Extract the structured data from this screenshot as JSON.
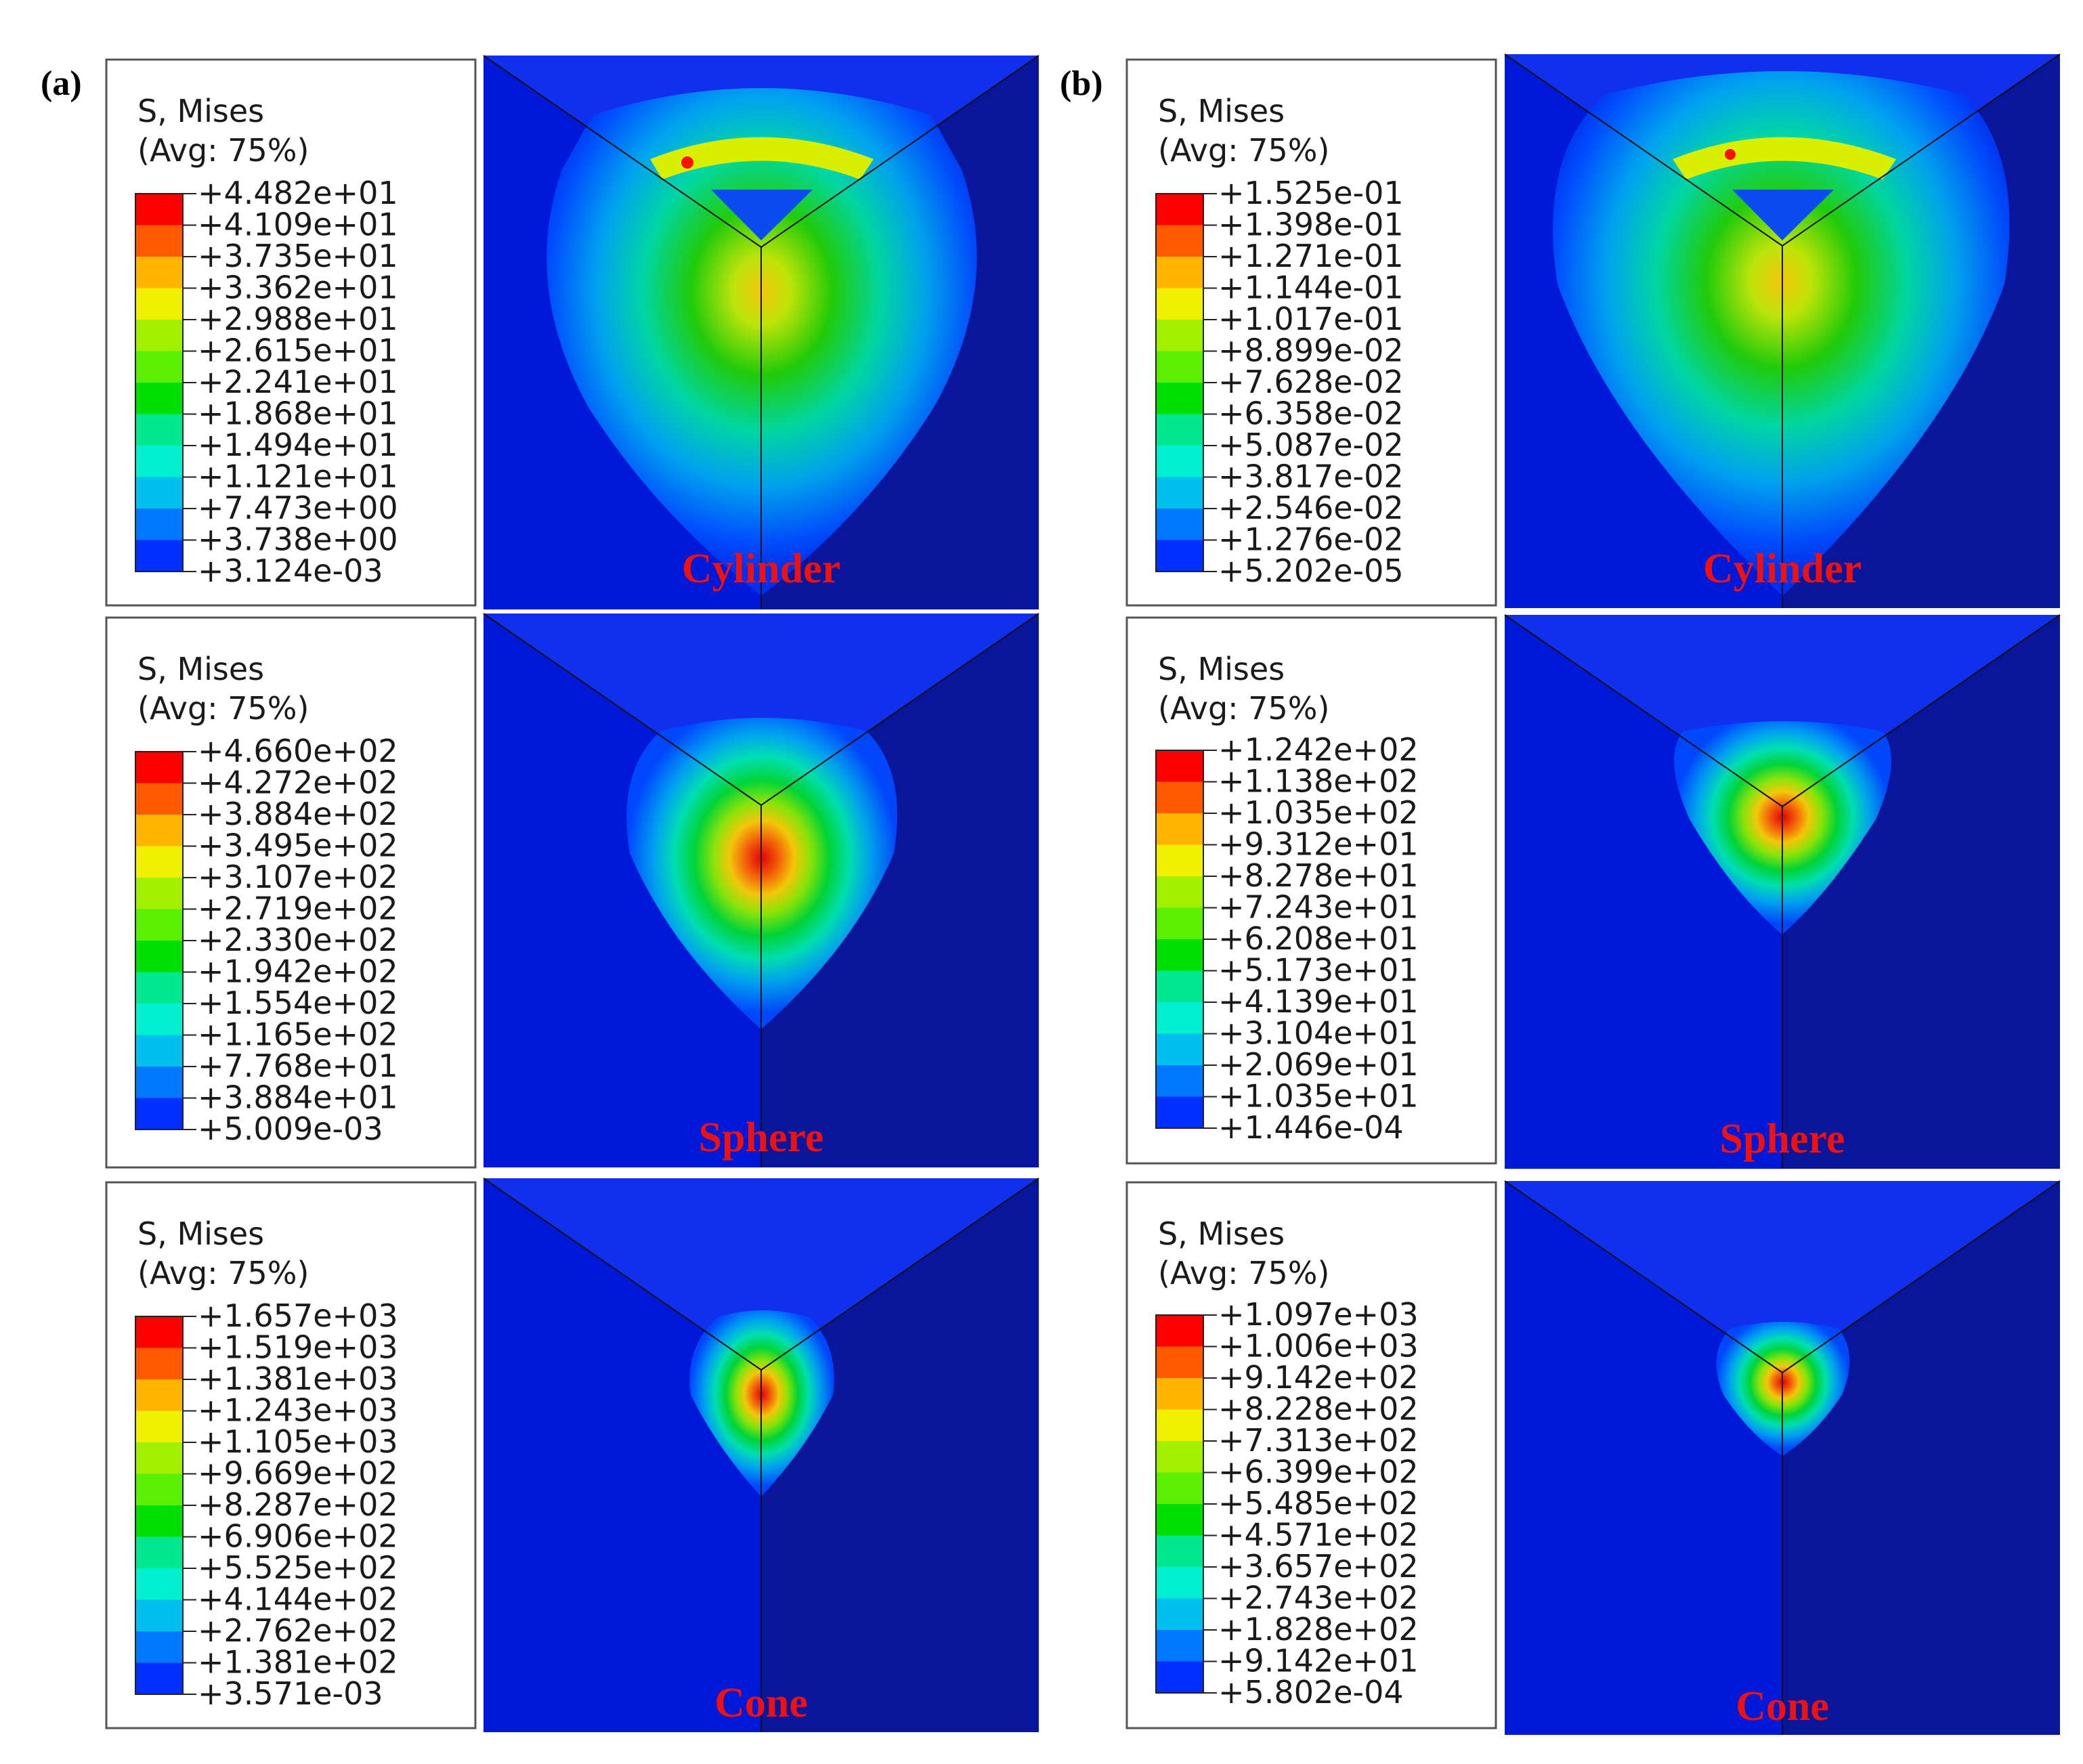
{
  "figure": {
    "panels": [
      {
        "letter": "(a)",
        "rows": [
          {
            "shape": "Cylinder",
            "legend_title": "S, Mises",
            "legend_subtitle": "(Avg: 75%)",
            "values": [
              "+4.482e+01",
              "+4.109e+01",
              "+3.735e+01",
              "+3.362e+01",
              "+2.988e+01",
              "+2.615e+01",
              "+2.241e+01",
              "+1.868e+01",
              "+1.494e+01",
              "+1.121e+01",
              "+7.473e+00",
              "+3.738e+00",
              "+3.124e-03"
            ]
          },
          {
            "shape": "Sphere",
            "legend_title": "S, Mises",
            "legend_subtitle": "(Avg: 75%)",
            "values": [
              "+4.660e+02",
              "+4.272e+02",
              "+3.884e+02",
              "+3.495e+02",
              "+3.107e+02",
              "+2.719e+02",
              "+2.330e+02",
              "+1.942e+02",
              "+1.554e+02",
              "+1.165e+02",
              "+7.768e+01",
              "+3.884e+01",
              "+5.009e-03"
            ]
          },
          {
            "shape": "Cone",
            "legend_title": "S, Mises",
            "legend_subtitle": "(Avg: 75%)",
            "values": [
              "+1.657e+03",
              "+1.519e+03",
              "+1.381e+03",
              "+1.243e+03",
              "+1.105e+03",
              "+9.669e+02",
              "+8.287e+02",
              "+6.906e+02",
              "+5.525e+02",
              "+4.144e+02",
              "+2.762e+02",
              "+1.381e+02",
              "+3.571e-03"
            ]
          }
        ]
      },
      {
        "letter": "(b)",
        "rows": [
          {
            "shape": "Cylinder",
            "legend_title": "S, Mises",
            "legend_subtitle": "(Avg: 75%)",
            "values": [
              "+1.525e-01",
              "+1.398e-01",
              "+1.271e-01",
              "+1.144e-01",
              "+1.017e-01",
              "+8.899e-02",
              "+7.628e-02",
              "+6.358e-02",
              "+5.087e-02",
              "+3.817e-02",
              "+2.546e-02",
              "+1.276e-02",
              "+5.202e-05"
            ]
          },
          {
            "shape": "Sphere",
            "legend_title": "S, Mises",
            "legend_subtitle": "(Avg: 75%)",
            "values": [
              "+1.242e+02",
              "+1.138e+02",
              "+1.035e+02",
              "+9.312e+01",
              "+8.278e+01",
              "+7.243e+01",
              "+6.208e+01",
              "+5.173e+01",
              "+4.139e+01",
              "+3.104e+01",
              "+2.069e+01",
              "+1.035e+01",
              "+1.446e-04"
            ]
          },
          {
            "shape": "Cone",
            "legend_title": "S, Mises",
            "legend_subtitle": "(Avg: 75%)",
            "values": [
              "+1.097e+03",
              "+1.006e+03",
              "+9.142e+02",
              "+8.228e+02",
              "+7.313e+02",
              "+6.399e+02",
              "+5.485e+02",
              "+4.571e+02",
              "+3.657e+02",
              "+2.743e+02",
              "+1.828e+02",
              "+9.142e+01",
              "+5.802e-04"
            ]
          }
        ]
      }
    ],
    "colormap": [
      "#ff0000",
      "#ff5a00",
      "#ffb400",
      "#f0f000",
      "#a0f000",
      "#5af000",
      "#00e000",
      "#00e890",
      "#00f0d0",
      "#00c0f0",
      "#0078ff",
      "#0030ff",
      "#0000ee"
    ],
    "background_color": "#0018d8"
  }
}
